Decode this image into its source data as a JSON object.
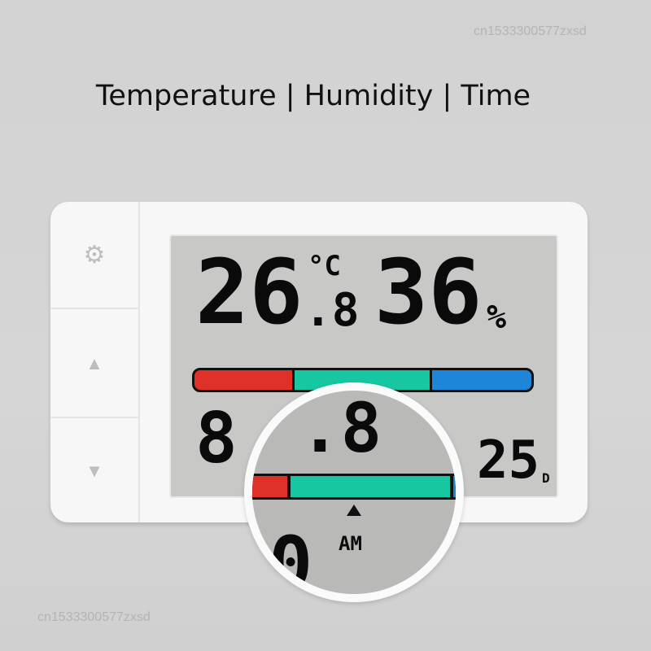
{
  "watermark": "cn1533300577zxsd",
  "title": "Temperature | Humidity | Time",
  "device": {
    "buttons": [
      {
        "icon": "gear-icon",
        "glyph": "⚙"
      },
      {
        "icon": "up-triangle-icon",
        "glyph": "▲"
      },
      {
        "icon": "down-triangle-icon",
        "glyph": "▼"
      }
    ],
    "lcd": {
      "temperature": "26",
      "temperature_decimal": ".8",
      "temperature_unit": "°C",
      "humidity": "36",
      "humidity_unit": "%",
      "comfort_bar": {
        "colors": {
          "dry_hot": "#e0302a",
          "comfort": "#17c7a2",
          "wet_cold": "#1e86d8"
        }
      },
      "lower_left": "8",
      "lower_right": "25",
      "lower_right_unit": "D"
    },
    "magnifier": {
      "digits": ".8",
      "indicator_glyph": "▲",
      "am_label": "AM",
      "time_partial": "0"
    }
  }
}
